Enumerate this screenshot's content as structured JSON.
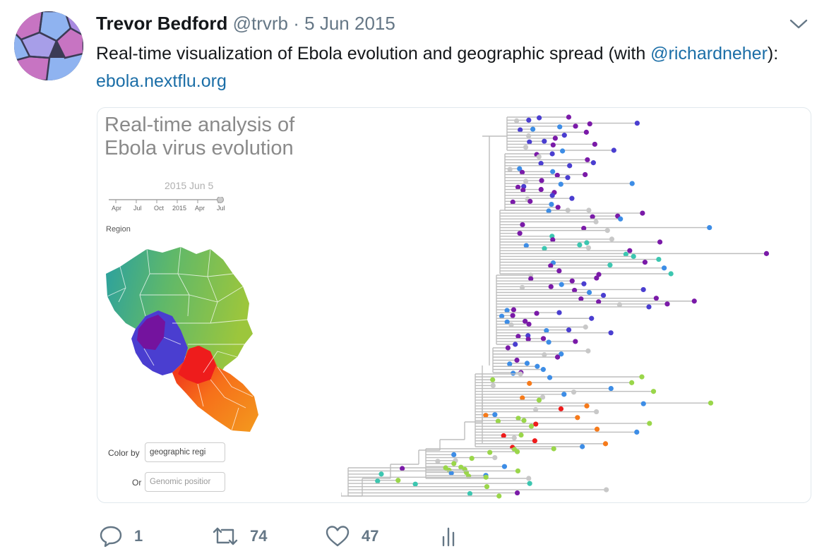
{
  "tweet": {
    "author_name": "Trevor Bedford",
    "handle": "@trvrb",
    "separator": "·",
    "date": "5 Jun 2015",
    "text_part1": "Real-time visualization of Ebola evolution and geographic spread (with ",
    "mention": "@richardneher",
    "text_part2": "): ",
    "link": "ebola.nextflu.org"
  },
  "media": {
    "title": "Real-time analysis of Ebola virus evolution",
    "slider_date": "2015 Jun 5",
    "slider_position": 1.0,
    "ticks": [
      "Apr",
      "Jul",
      "Oct",
      "2015",
      "Apr",
      "Jul"
    ],
    "region_label": "Region",
    "color_by_label": "Color by",
    "color_by_value": "geographic regi",
    "or_label": "Or",
    "genomic_placeholder": "Genomic positior",
    "colors": {
      "guinea_teal": "#2aa0a0",
      "guinea_green": "#8cc14a",
      "sierra_leone_purple": "#7a1aa8",
      "sierra_leone_blue": "#3c5ad6",
      "liberia_red": "#ee1c1c",
      "liberia_orange": "#f3901e"
    }
  },
  "actions": {
    "reply_count": "1",
    "retweet_count": "74",
    "like_count": "47"
  }
}
